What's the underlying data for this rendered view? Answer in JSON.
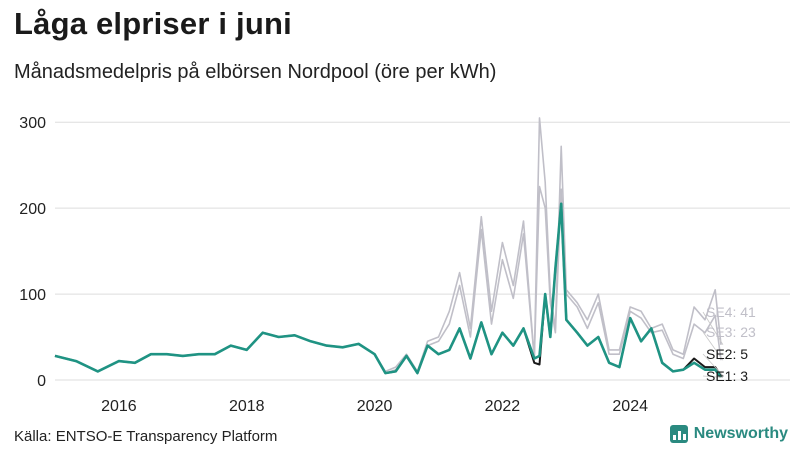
{
  "title": "Låga elpriser i juni",
  "subtitle": "Månadsmedelpris på elbörsen Nordpool (öre per kWh)",
  "source": "Källa: ENTSO-E Transparency Platform",
  "brand": "Newsworthy",
  "colors": {
    "SE1": "#1f9383",
    "SE2": "#1a1a1a",
    "SE3": "#c0bfc8",
    "SE4": "#c0bfc8",
    "grid": "#dddddd",
    "brand": "#2a8a80"
  },
  "chart_data": {
    "type": "line",
    "ylim": [
      0,
      320
    ],
    "yticks": [
      0,
      100,
      200,
      300
    ],
    "xlim": [
      2015.0,
      2026.5
    ],
    "xticks": [
      2016,
      2018,
      2020,
      2022,
      2024
    ],
    "grid": "horizontal",
    "x": [
      2015.0,
      2015.33,
      2015.67,
      2016.0,
      2016.25,
      2016.5,
      2016.75,
      2017.0,
      2017.25,
      2017.5,
      2017.75,
      2018.0,
      2018.25,
      2018.5,
      2018.75,
      2019.0,
      2019.25,
      2019.5,
      2019.75,
      2020.0,
      2020.17,
      2020.33,
      2020.5,
      2020.67,
      2020.83,
      2021.0,
      2021.17,
      2021.33,
      2021.5,
      2021.67,
      2021.83,
      2022.0,
      2022.17,
      2022.33,
      2022.5,
      2022.58,
      2022.67,
      2022.75,
      2022.83,
      2022.92,
      2023.0,
      2023.17,
      2023.33,
      2023.5,
      2023.67,
      2023.83,
      2024.0,
      2024.17,
      2024.33,
      2024.5,
      2024.67,
      2024.83,
      2025.0,
      2025.17,
      2025.33,
      2025.42
    ],
    "series": [
      {
        "name": "SE4",
        "end_label": "SE4: 41",
        "values": [
          28,
          22,
          10,
          22,
          20,
          30,
          30,
          28,
          30,
          30,
          40,
          35,
          55,
          50,
          52,
          45,
          40,
          38,
          42,
          30,
          10,
          15,
          30,
          10,
          45,
          50,
          80,
          125,
          60,
          190,
          80,
          160,
          110,
          185,
          25,
          305,
          230,
          100,
          60,
          272,
          105,
          90,
          70,
          100,
          35,
          35,
          85,
          80,
          60,
          65,
          35,
          30,
          85,
          70,
          105,
          41
        ]
      },
      {
        "name": "SE3",
        "end_label": "SE3: 23",
        "values": [
          28,
          22,
          10,
          22,
          20,
          30,
          30,
          28,
          30,
          30,
          40,
          35,
          55,
          50,
          52,
          45,
          40,
          38,
          42,
          30,
          8,
          12,
          28,
          8,
          40,
          45,
          65,
          110,
          50,
          175,
          65,
          140,
          95,
          170,
          25,
          225,
          200,
          90,
          55,
          222,
          100,
          85,
          60,
          90,
          30,
          30,
          80,
          72,
          55,
          58,
          30,
          25,
          65,
          55,
          75,
          23
        ]
      },
      {
        "name": "SE2",
        "end_label": "SE2: 5",
        "values": [
          28,
          22,
          10,
          22,
          20,
          30,
          30,
          28,
          30,
          30,
          40,
          35,
          55,
          50,
          52,
          45,
          40,
          38,
          42,
          30,
          8,
          10,
          28,
          8,
          40,
          30,
          35,
          60,
          25,
          67,
          30,
          55,
          40,
          60,
          20,
          18,
          100,
          50,
          130,
          205,
          70,
          55,
          40,
          50,
          20,
          15,
          72,
          45,
          60,
          20,
          10,
          12,
          25,
          15,
          15,
          5
        ]
      },
      {
        "name": "SE1",
        "end_label": "SE1: 3",
        "values": [
          28,
          22,
          10,
          22,
          20,
          30,
          30,
          28,
          30,
          30,
          40,
          35,
          55,
          50,
          52,
          45,
          40,
          38,
          42,
          30,
          8,
          10,
          28,
          8,
          40,
          30,
          35,
          60,
          25,
          67,
          30,
          55,
          40,
          60,
          25,
          28,
          100,
          50,
          130,
          205,
          70,
          55,
          40,
          50,
          20,
          15,
          72,
          45,
          60,
          20,
          10,
          12,
          20,
          12,
          12,
          3
        ]
      }
    ]
  }
}
